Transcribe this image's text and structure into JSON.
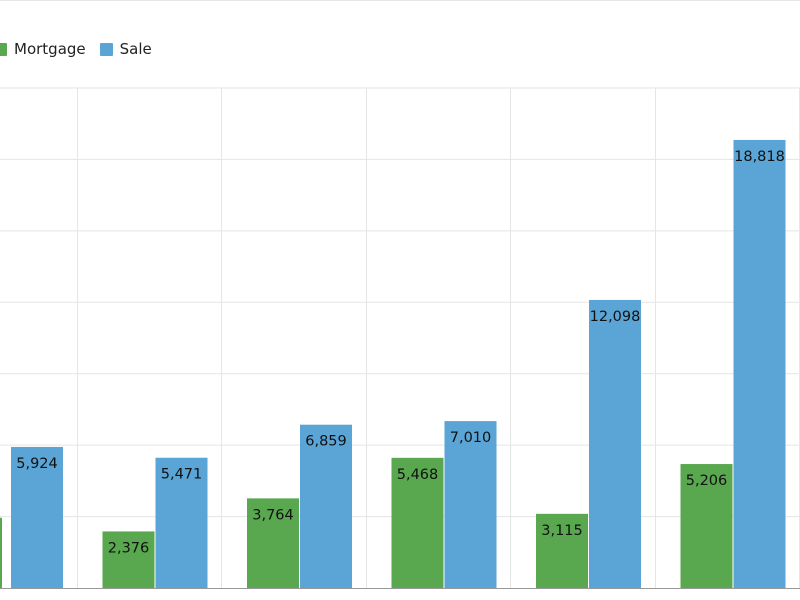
{
  "chart_data": {
    "type": "bar",
    "categories": [
      "",
      "",
      "",
      "",
      "",
      ""
    ],
    "series": [
      {
        "name": "Mortgage",
        "color": "#59a84f",
        "values": [
          null,
          2376,
          3764,
          5468,
          3115,
          5206
        ],
        "labels": [
          "",
          "2,376",
          "3,764",
          "5,468",
          "3,115",
          "5,206"
        ]
      },
      {
        "name": "Sale",
        "color": "#5aa5d6",
        "values": [
          5924,
          5471,
          6859,
          7010,
          12098,
          18818
        ],
        "labels": [
          "5,924",
          "5,471",
          "6,859",
          "7,010",
          "12,098",
          "18,818"
        ]
      }
    ],
    "ylim": [
      0,
      21000
    ],
    "grid": true,
    "legend": "top-left"
  }
}
